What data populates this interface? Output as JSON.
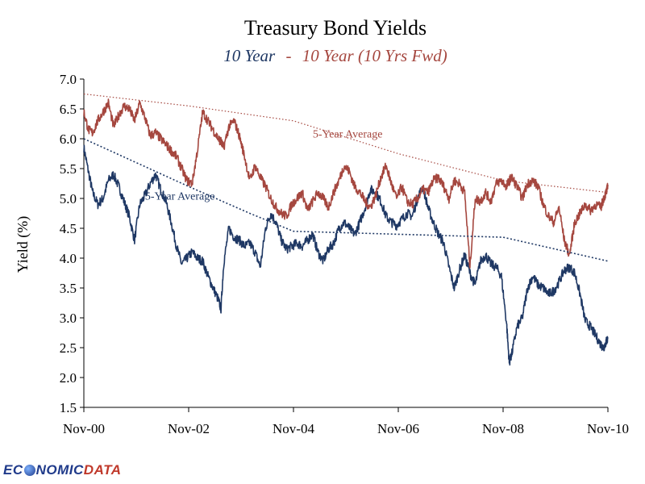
{
  "chart_data": {
    "type": "line",
    "title": "Treasury Bond Yields",
    "subtitle": {
      "part1": "10 Year",
      "separator": "-",
      "part2": "10 Year (10 Yrs Fwd)"
    },
    "ylabel": "Yield (%)",
    "xlabel": "",
    "ylim": [
      1.5,
      7.0
    ],
    "xlim": [
      2000.833,
      2010.833
    ],
    "y_ticks": [
      "1.5",
      "2.0",
      "2.5",
      "3.0",
      "3.5",
      "4.0",
      "4.5",
      "5.0",
      "5.5",
      "6.0",
      "6.5",
      "7.0"
    ],
    "x_ticks": [
      {
        "label": "Nov-00",
        "x": 2000.833
      },
      {
        "label": "Nov-02",
        "x": 2002.833
      },
      {
        "label": "Nov-04",
        "x": 2004.833
      },
      {
        "label": "Nov-06",
        "x": 2006.833
      },
      {
        "label": "Nov-08",
        "x": 2008.833
      },
      {
        "label": "Nov-10",
        "x": 2010.833
      }
    ],
    "grid": false,
    "legend": "none",
    "colors": {
      "ten_year": "#1f3864",
      "forward": "#a5473f"
    },
    "series": [
      {
        "name": "10 Year",
        "x": [
          2000.833,
          2000.92,
          2001.0,
          2001.1,
          2001.2,
          2001.3,
          2001.4,
          2001.5,
          2001.6,
          2001.7,
          2001.8,
          2001.9,
          2002.0,
          2002.1,
          2002.2,
          2002.3,
          2002.4,
          2002.5,
          2002.6,
          2002.7,
          2002.8,
          2002.9,
          2003.0,
          2003.1,
          2003.2,
          2003.3,
          2003.4,
          2003.45,
          2003.5,
          2003.6,
          2003.7,
          2003.8,
          2003.9,
          2004.0,
          2004.1,
          2004.2,
          2004.3,
          2004.4,
          2004.5,
          2004.6,
          2004.7,
          2004.8,
          2004.9,
          2005.0,
          2005.1,
          2005.2,
          2005.3,
          2005.4,
          2005.5,
          2005.6,
          2005.7,
          2005.8,
          2005.9,
          2006.0,
          2006.1,
          2006.2,
          2006.3,
          2006.4,
          2006.5,
          2006.6,
          2006.7,
          2006.8,
          2006.9,
          2007.0,
          2007.1,
          2007.2,
          2007.3,
          2007.4,
          2007.5,
          2007.6,
          2007.7,
          2007.8,
          2007.9,
          2008.0,
          2008.1,
          2008.2,
          2008.3,
          2008.4,
          2008.5,
          2008.6,
          2008.7,
          2008.8,
          2008.9,
          2008.95,
          2009.0,
          2009.1,
          2009.2,
          2009.3,
          2009.4,
          2009.5,
          2009.6,
          2009.7,
          2009.8,
          2009.9,
          2010.0,
          2010.1,
          2010.2,
          2010.3,
          2010.4,
          2010.5,
          2010.6,
          2010.7,
          2010.75,
          2010.8,
          2010.833
        ],
        "values": [
          5.85,
          5.45,
          5.1,
          4.9,
          5.0,
          5.3,
          5.4,
          5.2,
          4.95,
          4.7,
          4.3,
          4.9,
          5.05,
          5.25,
          5.4,
          5.15,
          4.95,
          4.6,
          4.2,
          3.9,
          4.0,
          4.1,
          4.0,
          3.95,
          3.7,
          3.5,
          3.3,
          3.15,
          3.9,
          4.5,
          4.35,
          4.3,
          4.2,
          4.25,
          4.1,
          3.85,
          4.5,
          4.75,
          4.6,
          4.3,
          4.15,
          4.2,
          4.25,
          4.2,
          4.3,
          4.4,
          4.1,
          3.95,
          4.15,
          4.25,
          4.5,
          4.6,
          4.5,
          4.4,
          4.6,
          4.85,
          5.15,
          5.1,
          4.95,
          4.7,
          4.6,
          4.55,
          4.65,
          4.75,
          4.7,
          5.0,
          5.2,
          4.85,
          4.6,
          4.4,
          4.25,
          3.85,
          3.5,
          3.8,
          4.05,
          3.75,
          3.55,
          3.95,
          4.05,
          3.9,
          3.85,
          3.7,
          2.9,
          2.25,
          2.4,
          2.85,
          3.0,
          3.5,
          3.7,
          3.55,
          3.5,
          3.4,
          3.45,
          3.6,
          3.8,
          3.85,
          3.75,
          3.4,
          2.95,
          2.85,
          2.7,
          2.55,
          2.5,
          2.6,
          2.65
        ]
      },
      {
        "name": "10 Year (10 Yrs Fwd)",
        "x": [
          2000.833,
          2000.92,
          2001.0,
          2001.1,
          2001.2,
          2001.3,
          2001.4,
          2001.5,
          2001.6,
          2001.7,
          2001.8,
          2001.9,
          2002.0,
          2002.1,
          2002.2,
          2002.3,
          2002.4,
          2002.5,
          2002.6,
          2002.7,
          2002.8,
          2002.9,
          2003.0,
          2003.1,
          2003.2,
          2003.3,
          2003.4,
          2003.45,
          2003.5,
          2003.6,
          2003.7,
          2003.8,
          2003.9,
          2004.0,
          2004.1,
          2004.2,
          2004.3,
          2004.4,
          2004.5,
          2004.6,
          2004.7,
          2004.8,
          2004.9,
          2005.0,
          2005.1,
          2005.2,
          2005.3,
          2005.4,
          2005.5,
          2005.6,
          2005.7,
          2005.8,
          2005.9,
          2006.0,
          2006.1,
          2006.2,
          2006.3,
          2006.4,
          2006.5,
          2006.6,
          2006.7,
          2006.8,
          2006.9,
          2007.0,
          2007.1,
          2007.2,
          2007.3,
          2007.4,
          2007.5,
          2007.6,
          2007.7,
          2007.8,
          2007.9,
          2008.0,
          2008.1,
          2008.2,
          2008.3,
          2008.4,
          2008.5,
          2008.6,
          2008.7,
          2008.8,
          2008.9,
          2008.95,
          2009.0,
          2009.1,
          2009.2,
          2009.3,
          2009.4,
          2009.5,
          2009.6,
          2009.7,
          2009.8,
          2009.9,
          2010.0,
          2010.1,
          2010.2,
          2010.3,
          2010.4,
          2010.5,
          2010.6,
          2010.7,
          2010.75,
          2010.8,
          2010.833
        ],
        "values": [
          6.45,
          6.15,
          6.1,
          6.3,
          6.45,
          6.6,
          6.2,
          6.4,
          6.55,
          6.5,
          6.3,
          6.6,
          6.35,
          6.05,
          6.1,
          6.0,
          5.9,
          5.8,
          5.7,
          5.5,
          5.3,
          5.25,
          5.8,
          6.45,
          6.3,
          6.15,
          6.0,
          5.95,
          5.85,
          6.2,
          6.3,
          6.05,
          5.7,
          5.3,
          5.55,
          5.35,
          5.2,
          5.0,
          4.85,
          4.75,
          4.7,
          4.9,
          5.0,
          5.1,
          4.8,
          4.95,
          5.1,
          5.0,
          4.85,
          5.1,
          5.3,
          5.55,
          5.45,
          5.2,
          5.1,
          4.95,
          4.85,
          5.05,
          5.35,
          5.55,
          5.25,
          5.0,
          5.2,
          4.95,
          4.9,
          5.0,
          5.15,
          5.1,
          5.3,
          5.35,
          5.2,
          5.0,
          5.3,
          5.25,
          5.1,
          3.85,
          5.0,
          4.95,
          5.1,
          4.95,
          5.25,
          5.3,
          5.2,
          5.3,
          5.35,
          5.2,
          5.0,
          5.25,
          5.3,
          5.2,
          4.9,
          4.7,
          4.6,
          4.85,
          4.3,
          4.05,
          4.6,
          4.75,
          4.9,
          4.8,
          4.9,
          4.85,
          5.0,
          5.1,
          5.2
        ]
      },
      {
        "name": "",
        "style": "dotted",
        "x": [
          2000.833,
          2002.833,
          2004.833,
          2006.833,
          2008.833,
          2010.833
        ],
        "values": [
          6.75,
          6.55,
          6.3,
          5.75,
          5.3,
          5.1
        ]
      },
      {
        "name": "",
        "style": "dotted",
        "x": [
          2000.833,
          2001.833,
          2002.833,
          2004.0,
          2004.833,
          2006.833,
          2008.833,
          2010.833
        ],
        "values": [
          6.0,
          5.6,
          5.2,
          4.75,
          4.45,
          4.4,
          4.35,
          3.95
        ]
      }
    ],
    "annotations": [
      {
        "text": "5-Year Average",
        "x": 2005.2,
        "y": 6.02,
        "color": "#a5473f"
      },
      {
        "text": "5-Year Average",
        "x": 2002.0,
        "y": 4.98,
        "color": "#1f3864"
      }
    ]
  },
  "footer": {
    "logo_text_1": "EC",
    "logo_text_2": "NOMIC",
    "logo_text_3": "DATA"
  }
}
